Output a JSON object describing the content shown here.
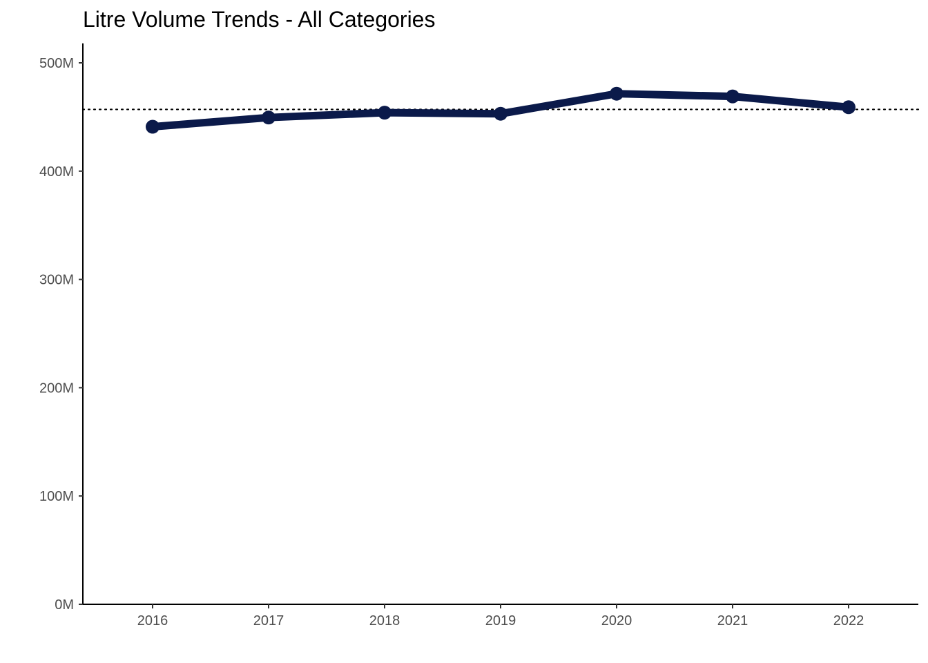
{
  "chart_data": {
    "type": "line",
    "title": "Litre Volume Trends - All Categories",
    "xlabel": "",
    "ylabel": "",
    "categories": [
      "2016",
      "2017",
      "2018",
      "2019",
      "2020",
      "2021",
      "2022"
    ],
    "series": [
      {
        "values": [
          441,
          449.5,
          454,
          453,
          471.5,
          469,
          459
        ],
        "color": "#0b1a4a"
      }
    ],
    "reference_line": {
      "value": 457,
      "style": "dotted",
      "color": "#000000"
    },
    "y_ticks": [
      {
        "value": 0,
        "label": "0M"
      },
      {
        "value": 100,
        "label": "100M"
      },
      {
        "value": 200,
        "label": "200M"
      },
      {
        "value": 300,
        "label": "300M"
      },
      {
        "value": 400,
        "label": "400M"
      },
      {
        "value": 500,
        "label": "500M"
      }
    ],
    "ylim": [
      0,
      518
    ],
    "y_unit_multiplier": "M",
    "grid": false,
    "legend": "none"
  }
}
